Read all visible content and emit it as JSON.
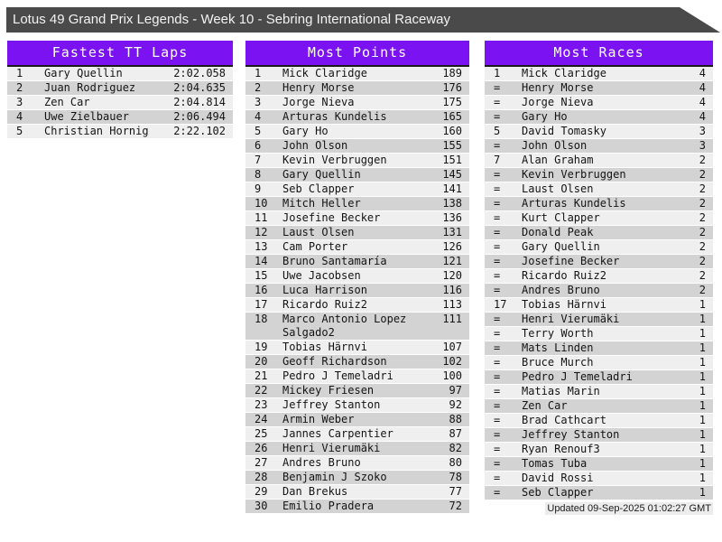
{
  "title": "Lotus 49 Grand Prix Legends - Week 10 - Sebring International Raceway",
  "updated": "Updated 09-Sep-2025 01:02:27 GMT",
  "colors": {
    "accent": "#7b12f2",
    "titlebar-bg": "#4a4a4a",
    "row-light": "#efefef",
    "row-dark": "#d3d3d3"
  },
  "panels": [
    {
      "title": "Fastest TT Laps",
      "rows": [
        {
          "rank": "1",
          "name": "Gary Quellin",
          "value": "2:02.058"
        },
        {
          "rank": "2",
          "name": "Juan Rodriguez",
          "value": "2:04.635"
        },
        {
          "rank": "3",
          "name": "Zen Car",
          "value": "2:04.814"
        },
        {
          "rank": "4",
          "name": "Uwe Zielbauer",
          "value": "2:06.494"
        },
        {
          "rank": "5",
          "name": "Christian Hornig",
          "value": "2:22.102"
        }
      ]
    },
    {
      "title": "Most Points",
      "rows": [
        {
          "rank": "1",
          "name": "Mick Claridge",
          "value": "189"
        },
        {
          "rank": "2",
          "name": "Henry Morse",
          "value": "176"
        },
        {
          "rank": "3",
          "name": "Jorge Nieva",
          "value": "175"
        },
        {
          "rank": "4",
          "name": "Arturas Kundelis",
          "value": "165"
        },
        {
          "rank": "5",
          "name": "Gary Ho",
          "value": "160"
        },
        {
          "rank": "6",
          "name": "John Olson",
          "value": "155"
        },
        {
          "rank": "7",
          "name": "Kevin Verbruggen",
          "value": "151"
        },
        {
          "rank": "8",
          "name": "Gary Quellin",
          "value": "145"
        },
        {
          "rank": "9",
          "name": "Seb Clapper",
          "value": "141"
        },
        {
          "rank": "10",
          "name": "Mitch Heller",
          "value": "138"
        },
        {
          "rank": "11",
          "name": "Josefine Becker",
          "value": "136"
        },
        {
          "rank": "12",
          "name": "Laust Olsen",
          "value": "131"
        },
        {
          "rank": "13",
          "name": "Cam Porter",
          "value": "126"
        },
        {
          "rank": "14",
          "name": "Bruno Santamaría",
          "value": "121"
        },
        {
          "rank": "15",
          "name": "Uwe Jacobsen",
          "value": "120"
        },
        {
          "rank": "16",
          "name": "Luca Harrison",
          "value": "116"
        },
        {
          "rank": "17",
          "name": "Ricardo Ruiz2",
          "value": "113"
        },
        {
          "rank": "18",
          "name": "Marco Antonio Lopez",
          "name2": "Salgado2",
          "value": "111"
        },
        {
          "rank": "19",
          "name": "Tobias Härnvi",
          "value": "107"
        },
        {
          "rank": "20",
          "name": "Geoff Richardson",
          "value": "102"
        },
        {
          "rank": "21",
          "name": "Pedro J Temeladri",
          "value": "100"
        },
        {
          "rank": "22",
          "name": "Mickey Friesen",
          "value": "97"
        },
        {
          "rank": "23",
          "name": "Jeffrey Stanton",
          "value": "92"
        },
        {
          "rank": "24",
          "name": "Armin Weber",
          "value": "88"
        },
        {
          "rank": "25",
          "name": "Jannes Carpentier",
          "value": "87"
        },
        {
          "rank": "26",
          "name": "Henri Vierumäki",
          "value": "82"
        },
        {
          "rank": "27",
          "name": "Andres Bruno",
          "value": "80"
        },
        {
          "rank": "28",
          "name": "Benjamin J Szoko",
          "value": "78"
        },
        {
          "rank": "29",
          "name": "Dan Brekus",
          "value": "77"
        },
        {
          "rank": "30",
          "name": "Emilio Pradera",
          "value": "72"
        }
      ]
    },
    {
      "title": "Most Races",
      "rows": [
        {
          "rank": "1",
          "name": "Mick Claridge",
          "value": "4"
        },
        {
          "rank": "=",
          "name": "Henry Morse",
          "value": "4"
        },
        {
          "rank": "=",
          "name": "Jorge Nieva",
          "value": "4"
        },
        {
          "rank": "=",
          "name": "Gary Ho",
          "value": "4"
        },
        {
          "rank": "5",
          "name": "David Tomasky",
          "value": "3"
        },
        {
          "rank": "=",
          "name": "John Olson",
          "value": "3"
        },
        {
          "rank": "7",
          "name": "Alan Graham",
          "value": "2"
        },
        {
          "rank": "=",
          "name": "Kevin Verbruggen",
          "value": "2"
        },
        {
          "rank": "=",
          "name": "Laust Olsen",
          "value": "2"
        },
        {
          "rank": "=",
          "name": "Arturas Kundelis",
          "value": "2"
        },
        {
          "rank": "=",
          "name": "Kurt Clapper",
          "value": "2"
        },
        {
          "rank": "=",
          "name": "Donald Peak",
          "value": "2"
        },
        {
          "rank": "=",
          "name": "Gary Quellin",
          "value": "2"
        },
        {
          "rank": "=",
          "name": "Josefine Becker",
          "value": "2"
        },
        {
          "rank": "=",
          "name": "Ricardo Ruiz2",
          "value": "2"
        },
        {
          "rank": "=",
          "name": "Andres Bruno",
          "value": "2"
        },
        {
          "rank": "17",
          "name": "Tobias Härnvi",
          "value": "1"
        },
        {
          "rank": "=",
          "name": "Henri Vierumäki",
          "value": "1"
        },
        {
          "rank": "=",
          "name": "Terry Worth",
          "value": "1"
        },
        {
          "rank": "=",
          "name": "Mats Linden",
          "value": "1"
        },
        {
          "rank": "=",
          "name": "Bruce Murch",
          "value": "1"
        },
        {
          "rank": "=",
          "name": "Pedro J Temeladri",
          "value": "1"
        },
        {
          "rank": "=",
          "name": "Matias Marin",
          "value": "1"
        },
        {
          "rank": "=",
          "name": "Zen Car",
          "value": "1"
        },
        {
          "rank": "=",
          "name": "Brad Cathcart",
          "value": "1"
        },
        {
          "rank": "=",
          "name": "Jeffrey Stanton",
          "value": "1"
        },
        {
          "rank": "=",
          "name": "Ryan Renouf3",
          "value": "1"
        },
        {
          "rank": "=",
          "name": "Tomas Tuba",
          "value": "1"
        },
        {
          "rank": "=",
          "name": "David Rossi",
          "value": "1"
        },
        {
          "rank": "=",
          "name": "Seb Clapper",
          "value": "1"
        }
      ]
    }
  ]
}
